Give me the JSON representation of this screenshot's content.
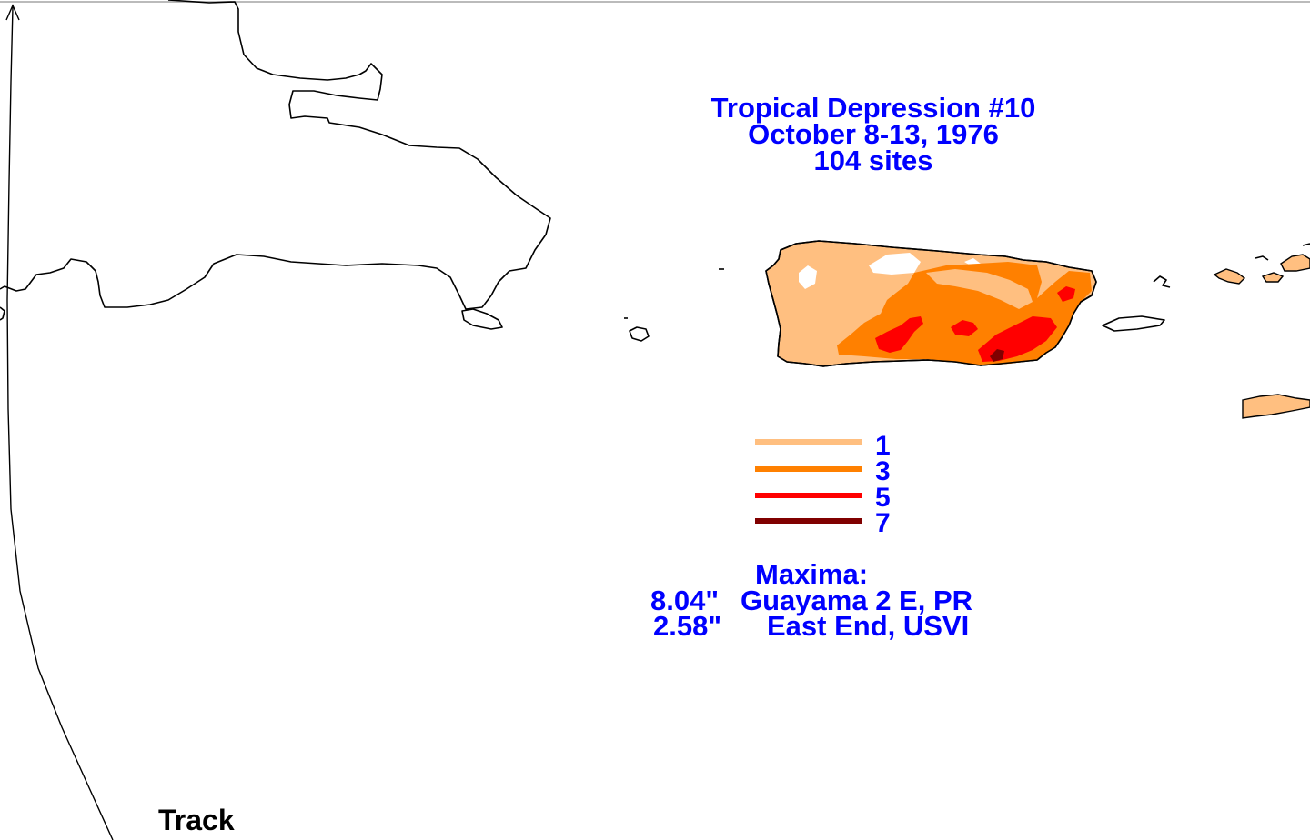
{
  "map": {
    "title_lines": [
      "Tropical Depression #10",
      "October 8-13, 1976",
      "104 sites"
    ],
    "track_label": "Track",
    "legend": {
      "entries": [
        {
          "label": "1",
          "color": "#ffbf80"
        },
        {
          "label": "3",
          "color": "#ff8000"
        },
        {
          "label": "5",
          "color": "#ff0000"
        },
        {
          "label": "7",
          "color": "#800000"
        }
      ]
    },
    "maxima": {
      "header": "Maxima:",
      "rows": [
        {
          "value": "8.04\"",
          "location": "Guayama 2 E, PR"
        },
        {
          "value": "2.58\"",
          "location": "East End, USVI"
        }
      ]
    },
    "colors": {
      "text": "#0000ff",
      "coastline": "#000000",
      "contour_1": "#ffbf80",
      "contour_3": "#ff8000",
      "contour_5": "#ff0000",
      "contour_7": "#800000"
    }
  }
}
